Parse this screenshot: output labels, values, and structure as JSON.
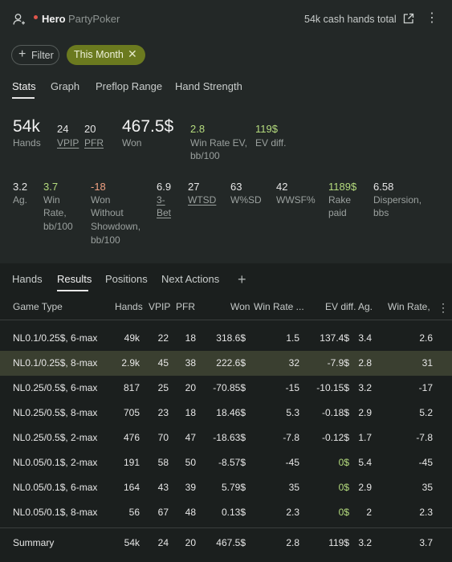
{
  "header": {
    "user": "Hero",
    "site": "PartyPoker",
    "hands_total": "54k cash hands total"
  },
  "filters": {
    "filter_label": "Filter",
    "active_filter": "This Month"
  },
  "tabs": [
    "Stats",
    "Graph",
    "Preflop Range",
    "Hand Strength"
  ],
  "stats_row1": {
    "hands": {
      "value": "54k",
      "label": "Hands"
    },
    "vpip": {
      "value": "24",
      "label": "VPIP"
    },
    "pfr": {
      "value": "20",
      "label": "PFR"
    },
    "won": {
      "value": "467.5$",
      "label": "Won"
    },
    "win_rate_ev": {
      "value": "2.8",
      "label_1": "Win Rate EV,",
      "label_2": "bb/100"
    },
    "ev_diff": {
      "value": "119$",
      "label": "EV diff."
    }
  },
  "stats_row2": {
    "ag": {
      "value": "3.2",
      "label": "Ag."
    },
    "win_rate": {
      "value": "3.7",
      "label_1": "Win",
      "label_2": "Rate,",
      "label_3": "bb/100"
    },
    "won_wo_sd": {
      "value": "-18",
      "label_1": "Won",
      "label_2": "Without",
      "label_3": "Showdown,",
      "label_4": "bb/100"
    },
    "threebet": {
      "value": "6.9",
      "label_1": "3-",
      "label_2": "Bet"
    },
    "wtsd": {
      "value": "27",
      "label": "WTSD"
    },
    "wsd": {
      "value": "63",
      "label": "W%SD"
    },
    "wwsf": {
      "value": "42",
      "label": "WWSF%"
    },
    "rake": {
      "value": "1189$",
      "label_1": "Rake",
      "label_2": "paid"
    },
    "dispersion": {
      "value": "6.58",
      "label_1": "Dispersion,",
      "label_2": "bbs"
    }
  },
  "bottom_tabs": [
    "Hands",
    "Results",
    "Positions",
    "Next Actions"
  ],
  "table": {
    "headers": {
      "game_type": "Game Type",
      "hands": "Hands",
      "vpip": "VPIP",
      "pfr": "PFR",
      "won": "Won",
      "win_rate_ev": "Win Rate ...",
      "ev_diff": "EV diff.",
      "ag": "Ag.",
      "win_rate": "Win Rate,"
    },
    "rows": [
      {
        "game": "NL0.1/0.25$, 6-max",
        "hands": "49k",
        "vpip": "22",
        "pfr": "18",
        "won": "318.6$",
        "wr_ev": "1.5",
        "ev_diff": "137.4$",
        "ag": "3.4",
        "wr": "2.6"
      },
      {
        "game": "NL0.1/0.25$, 8-max",
        "hands": "2.9k",
        "vpip": "45",
        "pfr": "38",
        "won": "222.6$",
        "wr_ev": "32",
        "ev_diff": "-7.9$",
        "ag": "2.8",
        "wr": "31"
      },
      {
        "game": "NL0.25/0.5$, 6-max",
        "hands": "817",
        "vpip": "25",
        "pfr": "20",
        "won": "-70.85$",
        "wr_ev": "-15",
        "ev_diff": "-10.15$",
        "ag": "3.2",
        "wr": "-17"
      },
      {
        "game": "NL0.25/0.5$, 8-max",
        "hands": "705",
        "vpip": "23",
        "pfr": "18",
        "won": "18.46$",
        "wr_ev": "5.3",
        "ev_diff": "-0.18$",
        "ag": "2.9",
        "wr": "5.2"
      },
      {
        "game": "NL0.25/0.5$, 2-max",
        "hands": "476",
        "vpip": "70",
        "pfr": "47",
        "won": "-18.63$",
        "wr_ev": "-7.8",
        "ev_diff": "-0.12$",
        "ag": "1.7",
        "wr": "-7.8"
      },
      {
        "game": "NL0.05/0.1$, 2-max",
        "hands": "191",
        "vpip": "58",
        "pfr": "50",
        "won": "-8.57$",
        "wr_ev": "-45",
        "ev_diff": "0$",
        "ag": "5.4",
        "wr": "-45"
      },
      {
        "game": "NL0.05/0.1$, 6-max",
        "hands": "164",
        "vpip": "43",
        "pfr": "39",
        "won": "5.79$",
        "wr_ev": "35",
        "ev_diff": "0$",
        "ag": "2.9",
        "wr": "35"
      },
      {
        "game": "NL0.05/0.1$, 8-max",
        "hands": "56",
        "vpip": "67",
        "pfr": "48",
        "won": "0.13$",
        "wr_ev": "2.3",
        "ev_diff": "0$",
        "ag": "2",
        "wr": "2.3"
      }
    ],
    "summary": {
      "game": "Summary",
      "hands": "54k",
      "vpip": "24",
      "pfr": "20",
      "won": "467.5$",
      "wr_ev": "2.8",
      "ev_diff": "119$",
      "ag": "3.2",
      "wr": "3.7"
    }
  },
  "colors": {
    "positive": "#b5dc7e",
    "negative": "#f0a082",
    "accent_chip": "#6b7a1f"
  }
}
